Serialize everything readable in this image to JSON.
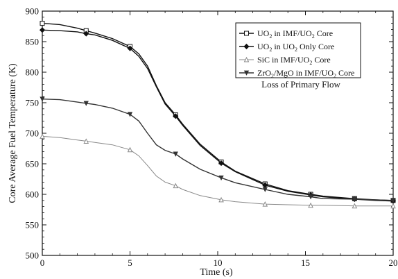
{
  "chart_data": {
    "type": "line",
    "title": "",
    "xlabel": "Time (s)",
    "ylabel": "Core Average Fuel Temperature (K)",
    "xlim": [
      0,
      20
    ],
    "ylim": [
      500,
      900
    ],
    "xticks": [
      0,
      5,
      10,
      15,
      20
    ],
    "yticks": [
      500,
      550,
      600,
      650,
      700,
      750,
      800,
      850,
      900
    ],
    "grid": false,
    "legend_position": "top-right",
    "annotation": "Loss of Primary Flow",
    "series": [
      {
        "name": "UO2 in IMF/UO2 Core",
        "legend_parts": [
          [
            "UO",
            ""
          ],
          [
            "2",
            "sub"
          ],
          [
            " in IMF/UO",
            ""
          ],
          [
            "2",
            "sub"
          ],
          [
            " Core",
            ""
          ]
        ],
        "marker": "square",
        "color": "#111111",
        "x": [
          0,
          1,
          2,
          2.5,
          3,
          4,
          5,
          5.5,
          6,
          6.5,
          7,
          7.6,
          8,
          9,
          10.2,
          11,
          12.7,
          14,
          15.3,
          16,
          17.8,
          19,
          20
        ],
        "y": [
          880,
          878,
          872,
          868,
          864,
          855,
          842,
          830,
          810,
          778,
          750,
          730,
          715,
          682,
          653,
          638,
          617,
          606,
          600,
          597,
          593,
          591,
          590
        ]
      },
      {
        "name": "UO2 in UO2 Only Core",
        "legend_parts": [
          [
            "UO",
            ""
          ],
          [
            "2",
            "sub"
          ],
          [
            " in UO",
            ""
          ],
          [
            "2",
            "sub"
          ],
          [
            " Only Core",
            ""
          ]
        ],
        "marker": "diamond",
        "color": "#111111",
        "x": [
          0,
          1,
          2,
          2.5,
          3,
          4,
          5,
          5.5,
          6,
          6.5,
          7,
          7.6,
          8,
          9,
          10.2,
          11,
          12.7,
          14,
          15.3,
          16,
          17.8,
          19,
          20
        ],
        "y": [
          869,
          868,
          866,
          863,
          861,
          852,
          839,
          826,
          806,
          776,
          748,
          728,
          713,
          680,
          651,
          637,
          615,
          605,
          599,
          596,
          592,
          590,
          589
        ]
      },
      {
        "name": "SiC in IMF/UO2 Core",
        "legend_parts": [
          [
            "SiC in IMF/UO",
            ""
          ],
          [
            "2",
            "sub"
          ],
          [
            " Core",
            ""
          ]
        ],
        "marker": "triangle-up",
        "color": "#888888",
        "x": [
          0,
          1,
          2,
          2.5,
          3,
          4,
          5,
          5.5,
          6,
          6.5,
          7,
          7.6,
          8,
          9,
          10.2,
          11,
          12.7,
          14,
          15.3,
          16,
          17.8,
          19,
          20
        ],
        "y": [
          695,
          693,
          689,
          687,
          685,
          681,
          673,
          663,
          647,
          630,
          620,
          614,
          608,
          598,
          591,
          588,
          584,
          583,
          582,
          582,
          581,
          581,
          581
        ]
      },
      {
        "name": "ZrO2/MgO in IMF/UO2 Core",
        "legend_parts": [
          [
            "ZrO",
            ""
          ],
          [
            "2",
            "sub"
          ],
          [
            "/MgO in IMF/UO",
            ""
          ],
          [
            "2",
            "sub"
          ],
          [
            " Core",
            ""
          ]
        ],
        "marker": "triangle-down",
        "color": "#333333",
        "x": [
          0,
          1,
          2,
          2.5,
          3,
          4,
          5,
          5.5,
          6,
          6.5,
          7,
          7.6,
          8,
          9,
          10.2,
          11,
          12.7,
          14,
          15.3,
          16,
          17.8,
          19,
          20
        ],
        "y": [
          756,
          755,
          751,
          749,
          747,
          741,
          731,
          720,
          700,
          681,
          672,
          666,
          658,
          641,
          627,
          619,
          608,
          600,
          596,
          593,
          592,
          591,
          590
        ]
      }
    ]
  }
}
